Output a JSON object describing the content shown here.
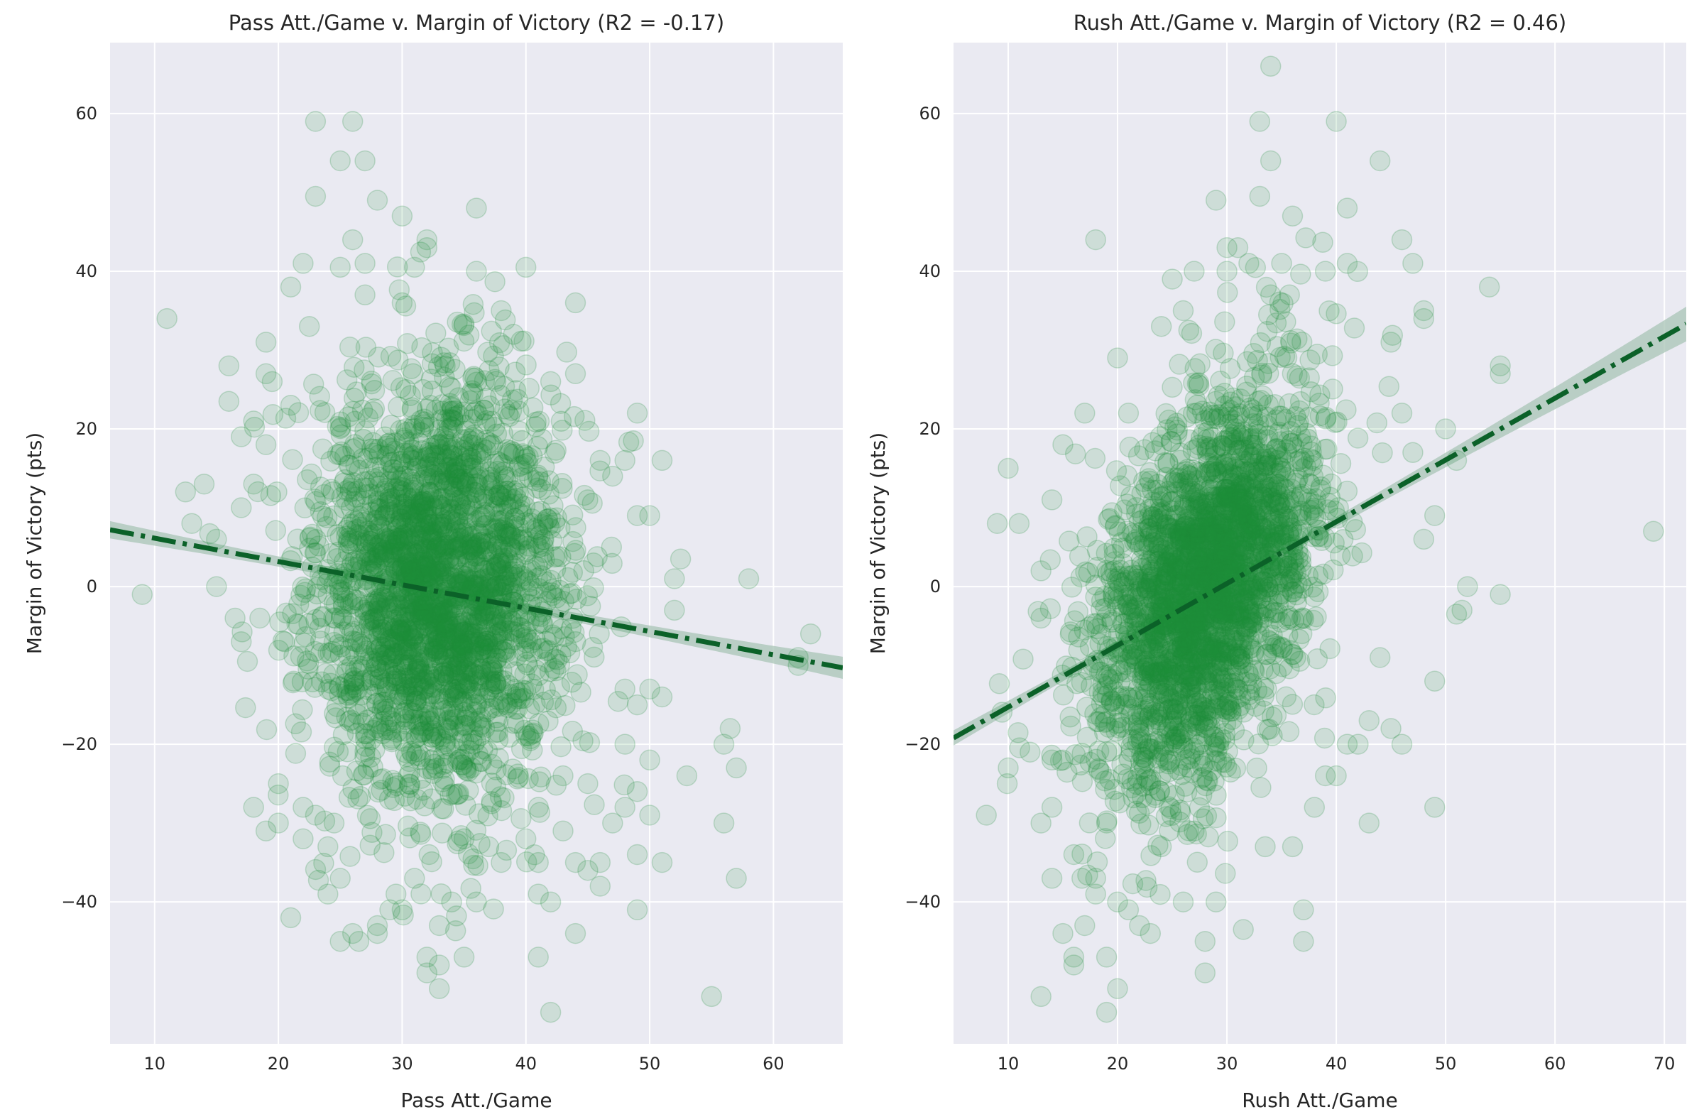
{
  "chart_data": [
    {
      "type": "scatter",
      "title": "Pass Att./Game v. Margin of Victory (R2 = -0.17)",
      "xlabel": "Pass Att./Game",
      "ylabel": "Margin of Victory (pts)",
      "xlim": [
        6.4,
        65.6
      ],
      "ylim": [
        -58,
        69
      ],
      "xticks": [
        10,
        20,
        30,
        40,
        50,
        60
      ],
      "yticks": [
        -40,
        -20,
        0,
        20,
        40,
        60
      ],
      "xtick_labels": [
        "10",
        "20",
        "30",
        "40",
        "50",
        "60"
      ],
      "ytick_labels": [
        "−40",
        "−20",
        "0",
        "20",
        "40",
        "60"
      ],
      "grid": true,
      "legend": "none",
      "point_color": "#1e8c3c",
      "line_color": "#0b6128",
      "band_color": "#a8c4b6",
      "trend_line": {
        "x": [
          6.4,
          65.6
        ],
        "y": [
          7.2,
          -10.3
        ]
      },
      "confidence_band_halfwidth": {
        "at_mean": 0.5,
        "at_edges": 1.4
      },
      "cloud": {
        "count": 2600,
        "x_mean": 33,
        "x_sd": 5.0,
        "y_mean": 0,
        "y_sd": 13
      },
      "points": [
        [
          9,
          -1
        ],
        [
          11,
          34
        ],
        [
          12.5,
          12
        ],
        [
          13,
          8
        ],
        [
          14,
          13
        ],
        [
          15,
          0
        ],
        [
          15,
          6
        ],
        [
          16,
          28
        ],
        [
          16,
          23.5
        ],
        [
          16.5,
          -4
        ],
        [
          17,
          10
        ],
        [
          17,
          19
        ],
        [
          17,
          -7
        ],
        [
          17.5,
          -9.5
        ],
        [
          18,
          -28
        ],
        [
          18,
          21
        ],
        [
          18,
          13
        ],
        [
          18.5,
          -4
        ],
        [
          19,
          31
        ],
        [
          19,
          27
        ],
        [
          19,
          -31
        ],
        [
          19,
          18
        ],
        [
          19.5,
          26
        ],
        [
          20,
          -25
        ],
        [
          20,
          -30
        ],
        [
          20.5,
          -7
        ],
        [
          21,
          38
        ],
        [
          21,
          -42
        ],
        [
          21,
          23
        ],
        [
          22,
          41
        ],
        [
          22,
          -32
        ],
        [
          22,
          -28
        ],
        [
          22.5,
          33
        ],
        [
          23,
          59
        ],
        [
          23,
          49.5
        ],
        [
          23,
          -29
        ],
        [
          24,
          -39
        ],
        [
          24,
          -33
        ],
        [
          24.5,
          -30
        ],
        [
          25,
          54
        ],
        [
          25,
          40.5
        ],
        [
          25,
          -37
        ],
        [
          25,
          -45
        ],
        [
          26,
          59
        ],
        [
          26,
          44
        ],
        [
          26,
          -44
        ],
        [
          26.5,
          -45
        ],
        [
          27,
          54
        ],
        [
          27,
          41
        ],
        [
          27,
          37
        ],
        [
          28,
          49
        ],
        [
          28,
          -43
        ],
        [
          28,
          -44
        ],
        [
          29,
          -41
        ],
        [
          29.5,
          -39
        ],
        [
          30,
          47
        ],
        [
          30,
          36
        ],
        [
          30,
          -41
        ],
        [
          31,
          40.5
        ],
        [
          31,
          -37
        ],
        [
          32,
          44
        ],
        [
          32,
          43
        ],
        [
          32,
          -47
        ],
        [
          32,
          -49
        ],
        [
          33,
          -48
        ],
        [
          33,
          -51
        ],
        [
          33,
          -43
        ],
        [
          34,
          -40
        ],
        [
          35,
          -47
        ],
        [
          35,
          -32
        ],
        [
          36,
          48
        ],
        [
          36,
          40
        ],
        [
          36,
          -40
        ],
        [
          37,
          -33
        ],
        [
          38,
          35
        ],
        [
          38,
          -35
        ],
        [
          39,
          32
        ],
        [
          40,
          40.5
        ],
        [
          40,
          -32
        ],
        [
          41,
          -47
        ],
        [
          41,
          -39
        ],
        [
          41,
          -35
        ],
        [
          41,
          -28
        ],
        [
          42,
          -40
        ],
        [
          42,
          -54
        ],
        [
          42,
          26
        ],
        [
          43,
          -24
        ],
        [
          43,
          -31
        ],
        [
          44,
          36
        ],
        [
          44,
          -44
        ],
        [
          44,
          -35
        ],
        [
          44,
          27
        ],
        [
          45,
          -25
        ],
        [
          45,
          -36
        ],
        [
          45,
          11
        ],
        [
          46,
          -38
        ],
        [
          46,
          -35
        ],
        [
          46,
          16
        ],
        [
          47,
          -30
        ],
        [
          47,
          14
        ],
        [
          48,
          -28
        ],
        [
          48,
          16
        ],
        [
          48,
          -13
        ],
        [
          48,
          -20
        ],
        [
          49,
          22
        ],
        [
          49,
          -26
        ],
        [
          49,
          -34
        ],
        [
          49,
          -41
        ],
        [
          49,
          -15
        ],
        [
          49,
          9
        ],
        [
          50,
          -29
        ],
        [
          50,
          -22
        ],
        [
          50,
          -13
        ],
        [
          50,
          9
        ],
        [
          51,
          16
        ],
        [
          51,
          -35
        ],
        [
          51,
          -14
        ],
        [
          52,
          1
        ],
        [
          52,
          -3
        ],
        [
          52.5,
          3.5
        ],
        [
          53,
          -24
        ],
        [
          55,
          -52
        ],
        [
          56,
          -30
        ],
        [
          56,
          -20
        ],
        [
          56.5,
          -18
        ],
        [
          57,
          -23
        ],
        [
          57,
          -37
        ],
        [
          58,
          1
        ],
        [
          62,
          -10
        ],
        [
          62,
          -9
        ],
        [
          63,
          -6
        ]
      ]
    },
    {
      "type": "scatter",
      "title": "Rush Att./Game v. Margin of Victory (R2 = 0.46)",
      "xlabel": "Rush Att./Game",
      "ylabel": "Margin of Victory (pts)",
      "xlim": [
        5,
        72
      ],
      "ylim": [
        -58,
        69
      ],
      "xticks": [
        10,
        20,
        30,
        40,
        50,
        60,
        70
      ],
      "yticks": [
        -40,
        -20,
        0,
        20,
        40,
        60
      ],
      "xtick_labels": [
        "10",
        "20",
        "30",
        "40",
        "50",
        "60",
        "70"
      ],
      "ytick_labels": [
        "−40",
        "−20",
        "0",
        "20",
        "40",
        "60"
      ],
      "grid": true,
      "legend": "none",
      "point_color": "#1e8c3c",
      "line_color": "#0b6128",
      "band_color": "#a8c4b6",
      "trend_line": {
        "x": [
          5,
          72
        ],
        "y": [
          -19.2,
          33.3
        ]
      },
      "confidence_band_halfwidth": {
        "at_mean": 0.5,
        "at_edges": 2.2
      },
      "cloud": {
        "count": 2600,
        "x_mean": 28,
        "x_sd": 5.0,
        "y_mean": 0,
        "y_sd": 12.5,
        "corr": 0.45
      },
      "points": [
        [
          8,
          -29
        ],
        [
          9,
          8
        ],
        [
          10,
          15
        ],
        [
          10,
          -23
        ],
        [
          11,
          8
        ],
        [
          12,
          -21
        ],
        [
          13,
          -52
        ],
        [
          13,
          -30
        ],
        [
          13,
          2
        ],
        [
          13,
          -4
        ],
        [
          14,
          -37
        ],
        [
          14,
          -28
        ],
        [
          14,
          -22
        ],
        [
          14,
          11
        ],
        [
          15,
          -44
        ],
        [
          15,
          -22
        ],
        [
          15,
          18
        ],
        [
          16,
          -47
        ],
        [
          16,
          -48
        ],
        [
          16,
          -34
        ],
        [
          17,
          -43
        ],
        [
          17,
          22
        ],
        [
          18,
          44
        ],
        [
          18,
          -39
        ],
        [
          18,
          -37
        ],
        [
          19,
          -54
        ],
        [
          19,
          -47
        ],
        [
          19,
          -30
        ],
        [
          20,
          -51
        ],
        [
          20,
          -40
        ],
        [
          20,
          29
        ],
        [
          21,
          -41
        ],
        [
          21,
          22
        ],
        [
          22,
          -43
        ],
        [
          23,
          -44
        ],
        [
          24,
          -33
        ],
        [
          24,
          33
        ],
        [
          25,
          39
        ],
        [
          26,
          -40
        ],
        [
          26,
          35
        ],
        [
          27,
          40
        ],
        [
          27,
          -31
        ],
        [
          28,
          -45
        ],
        [
          28,
          -49
        ],
        [
          29,
          49
        ],
        [
          29,
          -40
        ],
        [
          30,
          43
        ],
        [
          30,
          40
        ],
        [
          31,
          43
        ],
        [
          31.5,
          -43.5
        ],
        [
          32,
          41
        ],
        [
          33,
          59
        ],
        [
          33,
          49.5
        ],
        [
          33.5,
          -33
        ],
        [
          34,
          66
        ],
        [
          34,
          54
        ],
        [
          34,
          37
        ],
        [
          35,
          41
        ],
        [
          36,
          47
        ],
        [
          36,
          -33
        ],
        [
          37,
          -41
        ],
        [
          37,
          -45
        ],
        [
          38,
          -28
        ],
        [
          39,
          40
        ],
        [
          39,
          -24
        ],
        [
          40,
          59
        ],
        [
          40,
          -24
        ],
        [
          41,
          48
        ],
        [
          41,
          41
        ],
        [
          41,
          -20
        ],
        [
          42,
          -20
        ],
        [
          43,
          -17
        ],
        [
          43,
          -30
        ],
        [
          44,
          54
        ],
        [
          44,
          -9
        ],
        [
          45,
          31
        ],
        [
          45,
          -18
        ],
        [
          46,
          44
        ],
        [
          46,
          22
        ],
        [
          46,
          -20
        ],
        [
          47,
          41
        ],
        [
          47,
          17
        ],
        [
          48,
          35
        ],
        [
          48,
          34
        ],
        [
          48,
          6
        ],
        [
          49,
          -28
        ],
        [
          49,
          9
        ],
        [
          49,
          -12
        ],
        [
          50,
          20
        ],
        [
          51,
          -3.5
        ],
        [
          51,
          16
        ],
        [
          51.5,
          -3
        ],
        [
          52,
          0
        ],
        [
          54,
          38
        ],
        [
          55,
          28
        ],
        [
          55,
          27
        ],
        [
          55,
          -1
        ],
        [
          69,
          7
        ]
      ]
    }
  ]
}
